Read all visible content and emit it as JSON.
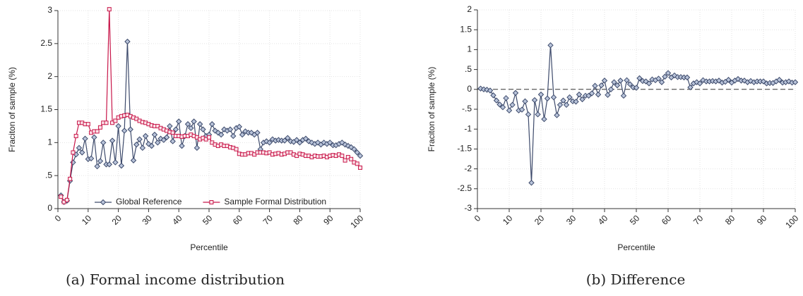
{
  "chart_data": [
    {
      "type": "line",
      "caption": "(a) Formal income distribution",
      "x_label": "Percentile",
      "y_label": "Fraciton of sample (%)",
      "x": [
        1,
        2,
        3,
        4,
        5,
        6,
        7,
        8,
        9,
        10,
        11,
        12,
        13,
        14,
        15,
        16,
        17,
        18,
        19,
        20,
        21,
        22,
        23,
        24,
        25,
        26,
        27,
        28,
        29,
        30,
        31,
        32,
        33,
        34,
        35,
        36,
        37,
        38,
        39,
        40,
        41,
        42,
        43,
        44,
        45,
        46,
        47,
        48,
        49,
        50,
        51,
        52,
        53,
        54,
        55,
        56,
        57,
        58,
        59,
        60,
        61,
        62,
        63,
        64,
        65,
        66,
        67,
        68,
        69,
        70,
        71,
        72,
        73,
        74,
        75,
        76,
        77,
        78,
        79,
        80,
        81,
        82,
        83,
        84,
        85,
        86,
        87,
        88,
        89,
        90,
        91,
        92,
        93,
        94,
        95,
        96,
        97,
        98,
        99,
        100
      ],
      "series": [
        {
          "name": "Global Reference",
          "color": "#3d4a6b",
          "marker": "diamond",
          "values": [
            0.2,
            0.1,
            0.12,
            0.42,
            0.7,
            0.82,
            0.92,
            0.85,
            1.06,
            0.75,
            0.76,
            1.08,
            0.64,
            0.72,
            1.0,
            0.67,
            0.67,
            1.03,
            0.7,
            1.25,
            0.65,
            1.18,
            2.53,
            1.2,
            0.73,
            0.97,
            1.05,
            0.92,
            1.1,
            0.98,
            0.95,
            1.12,
            1.0,
            1.06,
            1.04,
            1.08,
            1.25,
            1.02,
            1.2,
            1.32,
            0.95,
            1.1,
            1.28,
            1.22,
            1.32,
            0.92,
            1.28,
            1.2,
            1.1,
            1.12,
            1.28,
            1.18,
            1.15,
            1.12,
            1.2,
            1.18,
            1.2,
            1.1,
            1.22,
            1.24,
            1.12,
            1.17,
            1.15,
            1.15,
            1.12,
            1.15,
            0.9,
            1.0,
            1.02,
            1.0,
            1.05,
            1.03,
            1.04,
            1.03,
            1.03,
            1.07,
            1.02,
            1.01,
            1.04,
            1.0,
            1.04,
            1.06,
            1.02,
            1.0,
            0.98,
            1.0,
            0.97,
            1.0,
            0.98,
            1.0,
            0.96,
            0.96,
            0.98,
            1.0,
            0.97,
            0.95,
            0.93,
            0.9,
            0.85,
            0.8
          ]
        },
        {
          "name": "Sample Formal Distribution",
          "color": "#c8174a",
          "marker": "square",
          "values": [
            0.18,
            0.1,
            0.13,
            0.45,
            0.85,
            1.1,
            1.3,
            1.3,
            1.28,
            1.28,
            1.15,
            1.17,
            1.17,
            1.23,
            1.3,
            1.3,
            3.02,
            1.3,
            1.33,
            1.38,
            1.4,
            1.41,
            1.42,
            1.4,
            1.38,
            1.36,
            1.33,
            1.31,
            1.3,
            1.28,
            1.26,
            1.25,
            1.25,
            1.22,
            1.2,
            1.18,
            1.16,
            1.15,
            1.1,
            1.1,
            1.09,
            1.1,
            1.1,
            1.12,
            1.1,
            1.08,
            1.05,
            1.07,
            1.05,
            1.08,
            1.0,
            0.97,
            0.95,
            0.97,
            0.95,
            0.95,
            0.93,
            0.92,
            0.9,
            0.83,
            0.82,
            0.82,
            0.84,
            0.84,
            0.82,
            0.85,
            0.85,
            0.85,
            0.84,
            0.85,
            0.82,
            0.83,
            0.84,
            0.82,
            0.83,
            0.85,
            0.85,
            0.82,
            0.8,
            0.83,
            0.82,
            0.8,
            0.8,
            0.78,
            0.8,
            0.79,
            0.79,
            0.8,
            0.78,
            0.8,
            0.81,
            0.8,
            0.82,
            0.8,
            0.73,
            0.78,
            0.75,
            0.7,
            0.68,
            0.62
          ]
        }
      ],
      "xlim": [
        0,
        100
      ],
      "xticks": [
        0,
        10,
        20,
        30,
        40,
        50,
        60,
        70,
        80,
        90,
        100
      ],
      "ylim": [
        0,
        3
      ],
      "yticks": [
        0,
        {
          "value": 0.5,
          "label": ".5"
        },
        1,
        1.5,
        2,
        2.5,
        3
      ],
      "grid": true,
      "legend": "bottom"
    },
    {
      "type": "line",
      "caption": "(b) Difference",
      "x_label": "Percentile",
      "y_label": "Fraciton of sample (%)",
      "x": [
        1,
        2,
        3,
        4,
        5,
        6,
        7,
        8,
        9,
        10,
        11,
        12,
        13,
        14,
        15,
        16,
        17,
        18,
        19,
        20,
        21,
        22,
        23,
        24,
        25,
        26,
        27,
        28,
        29,
        30,
        31,
        32,
        33,
        34,
        35,
        36,
        37,
        38,
        39,
        40,
        41,
        42,
        43,
        44,
        45,
        46,
        47,
        48,
        49,
        50,
        51,
        52,
        53,
        54,
        55,
        56,
        57,
        58,
        59,
        60,
        61,
        62,
        63,
        64,
        65,
        66,
        67,
        68,
        69,
        70,
        71,
        72,
        73,
        74,
        75,
        76,
        77,
        78,
        79,
        80,
        81,
        82,
        83,
        84,
        85,
        86,
        87,
        88,
        89,
        90,
        91,
        92,
        93,
        94,
        95,
        96,
        97,
        98,
        99,
        100
      ],
      "series": [
        {
          "color": "#3d4a6b",
          "marker": "diamond",
          "values": [
            0.02,
            0.0,
            -0.01,
            -0.03,
            -0.15,
            -0.28,
            -0.38,
            -0.45,
            -0.22,
            -0.53,
            -0.39,
            -0.09,
            -0.53,
            -0.51,
            -0.3,
            -0.63,
            -2.35,
            -0.27,
            -0.63,
            -0.13,
            -0.75,
            -0.23,
            1.11,
            -0.2,
            -0.65,
            -0.39,
            -0.28,
            -0.39,
            -0.2,
            -0.3,
            -0.31,
            -0.13,
            -0.25,
            -0.16,
            -0.16,
            -0.1,
            0.09,
            -0.13,
            0.1,
            0.22,
            -0.14,
            0.0,
            0.18,
            0.1,
            0.22,
            -0.16,
            0.23,
            0.13,
            0.05,
            0.04,
            0.28,
            0.21,
            0.2,
            0.15,
            0.25,
            0.23,
            0.27,
            0.18,
            0.32,
            0.41,
            0.3,
            0.35,
            0.31,
            0.31,
            0.3,
            0.3,
            0.05,
            0.15,
            0.18,
            0.15,
            0.23,
            0.2,
            0.2,
            0.21,
            0.2,
            0.22,
            0.17,
            0.19,
            0.24,
            0.17,
            0.22,
            0.26,
            0.22,
            0.22,
            0.18,
            0.21,
            0.18,
            0.2,
            0.2,
            0.2,
            0.15,
            0.16,
            0.16,
            0.2,
            0.24,
            0.17,
            0.18,
            0.2,
            0.17,
            0.18
          ]
        }
      ],
      "hline": 0,
      "xlim": [
        0,
        100
      ],
      "xticks": [
        0,
        10,
        20,
        30,
        40,
        50,
        60,
        70,
        80,
        90,
        100
      ],
      "ylim": [
        -3,
        2
      ],
      "yticks": [
        -3,
        {
          "value": -2.5,
          "label": "-2.5"
        },
        -2,
        {
          "value": -1.5,
          "label": "-1.5"
        },
        -1,
        {
          "value": -0.5,
          "label": "-.5"
        },
        0,
        {
          "value": 0.5,
          "label": ".5"
        },
        1,
        1.5,
        2
      ],
      "grid": true
    }
  ]
}
